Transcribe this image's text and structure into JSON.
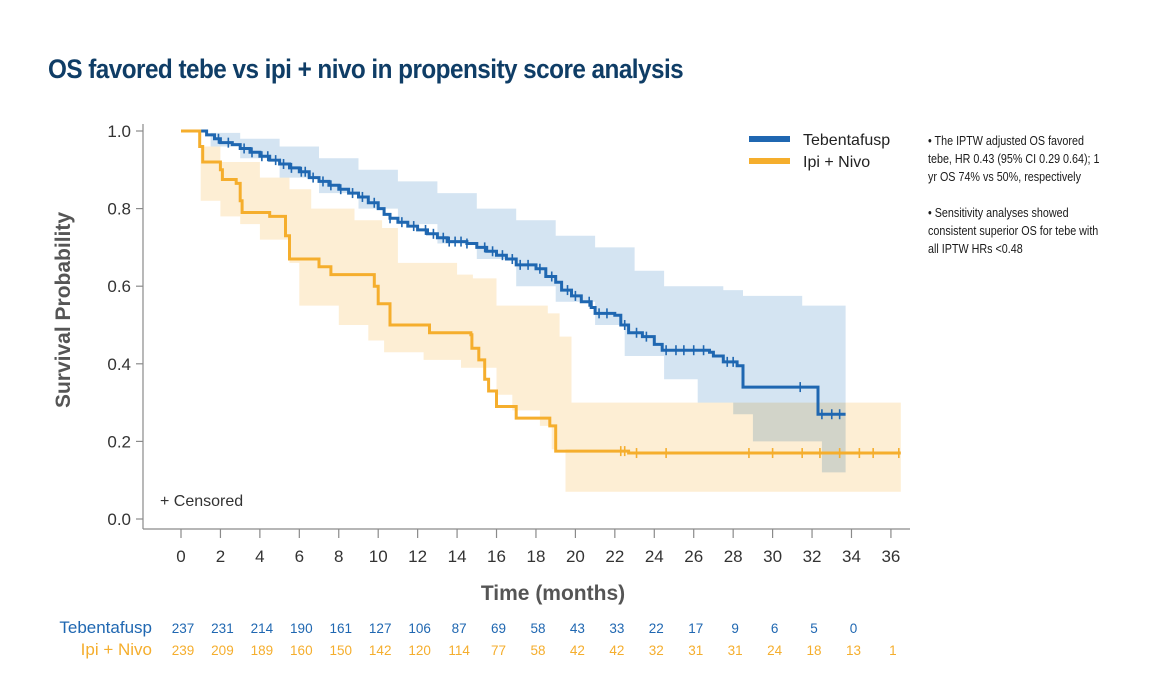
{
  "title": "OS favored tebe vs ipi + nivo in propensity score analysis",
  "notes": [
    "• The IPTW adjusted OS favored tebe, HR 0.43 (95% CI 0.29 0.64); 1 yr OS 74% vs 50%, respectively",
    "• Sensitivity analyses showed consistent superior OS for tebe with all IPTW HRs <0.48"
  ],
  "colors": {
    "tebe": "#1f67b1",
    "tebe_ci": "#cddff0",
    "ipi": "#f5ae2d",
    "ipi_ci": "#fdeed4",
    "overlap": "#d2d8d3",
    "title": "#0f3d66"
  },
  "chart_data": {
    "type": "line",
    "subtype": "kaplan-meier",
    "title": "OS favored tebe vs ipi + nivo in propensity score analysis",
    "xlabel": "Time (months)",
    "ylabel": "Survival Probability",
    "xlim": [
      -1.8,
      37
    ],
    "ylim": [
      0,
      1.0
    ],
    "x_ticks": [
      0,
      2,
      4,
      6,
      8,
      10,
      12,
      14,
      16,
      18,
      20,
      22,
      24,
      26,
      28,
      30,
      32,
      34,
      36
    ],
    "y_ticks": [
      0.0,
      0.2,
      0.4,
      0.6,
      0.8,
      1.0
    ],
    "y_tick_labels": [
      "0.0",
      "0.2",
      "0.4",
      "0.6",
      "0.8",
      "1.0"
    ],
    "grid": false,
    "legend_position": "top-right",
    "censored_note": "+ Censored",
    "series": [
      {
        "name": "Tebentafusp",
        "key": "tebe",
        "steps": [
          [
            0,
            1.0
          ],
          [
            1.0,
            1.0
          ],
          [
            1.3,
            0.99
          ],
          [
            1.7,
            0.98
          ],
          [
            2.0,
            0.97
          ],
          [
            2.6,
            0.965
          ],
          [
            3.0,
            0.955
          ],
          [
            3.5,
            0.945
          ],
          [
            4.0,
            0.935
          ],
          [
            4.5,
            0.925
          ],
          [
            5.0,
            0.915
          ],
          [
            5.5,
            0.905
          ],
          [
            6.0,
            0.895
          ],
          [
            6.5,
            0.88
          ],
          [
            7.0,
            0.87
          ],
          [
            7.5,
            0.86
          ],
          [
            8.0,
            0.85
          ],
          [
            8.5,
            0.84
          ],
          [
            9.0,
            0.83
          ],
          [
            9.5,
            0.815
          ],
          [
            10.0,
            0.8
          ],
          [
            10.3,
            0.785
          ],
          [
            10.6,
            0.775
          ],
          [
            11.0,
            0.765
          ],
          [
            11.5,
            0.755
          ],
          [
            12.0,
            0.745
          ],
          [
            12.5,
            0.735
          ],
          [
            13.0,
            0.725
          ],
          [
            13.5,
            0.715
          ],
          [
            14.5,
            0.71
          ],
          [
            15.0,
            0.7
          ],
          [
            15.5,
            0.69
          ],
          [
            16.0,
            0.68
          ],
          [
            16.5,
            0.67
          ],
          [
            17.0,
            0.655
          ],
          [
            18.0,
            0.645
          ],
          [
            18.5,
            0.625
          ],
          [
            19.0,
            0.61
          ],
          [
            19.3,
            0.59
          ],
          [
            19.8,
            0.575
          ],
          [
            20.3,
            0.56
          ],
          [
            20.8,
            0.545
          ],
          [
            21.0,
            0.53
          ],
          [
            22.0,
            0.525
          ],
          [
            22.3,
            0.5
          ],
          [
            22.7,
            0.48
          ],
          [
            23.4,
            0.47
          ],
          [
            24.0,
            0.45
          ],
          [
            24.4,
            0.435
          ],
          [
            26.8,
            0.43
          ],
          [
            27.0,
            0.42
          ],
          [
            27.5,
            0.405
          ],
          [
            28.2,
            0.395
          ],
          [
            28.5,
            0.34
          ],
          [
            32.2,
            0.34
          ],
          [
            32.3,
            0.27
          ],
          [
            33.7,
            0.27
          ]
        ],
        "ci_upper": [
          [
            0,
            1.0
          ],
          [
            1.5,
            0.995
          ],
          [
            3,
            0.98
          ],
          [
            5,
            0.96
          ],
          [
            7,
            0.93
          ],
          [
            9,
            0.9
          ],
          [
            11,
            0.87
          ],
          [
            13,
            0.84
          ],
          [
            15,
            0.8
          ],
          [
            17,
            0.77
          ],
          [
            19,
            0.73
          ],
          [
            21,
            0.7
          ],
          [
            23,
            0.64
          ],
          [
            24.5,
            0.6
          ],
          [
            27.5,
            0.59
          ],
          [
            28.5,
            0.575
          ],
          [
            31.5,
            0.55
          ],
          [
            33.7,
            0.44
          ]
        ],
        "ci_lower": [
          [
            0,
            1.0
          ],
          [
            1.5,
            0.96
          ],
          [
            3,
            0.93
          ],
          [
            5,
            0.88
          ],
          [
            7,
            0.84
          ],
          [
            9,
            0.8
          ],
          [
            11,
            0.76
          ],
          [
            13,
            0.71
          ],
          [
            15,
            0.67
          ],
          [
            17,
            0.6
          ],
          [
            19,
            0.56
          ],
          [
            21,
            0.5
          ],
          [
            22.5,
            0.42
          ],
          [
            24.5,
            0.36
          ],
          [
            26.2,
            0.3
          ],
          [
            28,
            0.27
          ],
          [
            29,
            0.2
          ],
          [
            32.5,
            0.12
          ],
          [
            33.7,
            0.12
          ]
        ],
        "censored_times": [
          1.9,
          2.4,
          3.2,
          3.6,
          4.1,
          4.4,
          4.8,
          5.2,
          5.6,
          6.1,
          6.3,
          6.7,
          7.2,
          7.6,
          8.1,
          8.7,
          9.2,
          9.8,
          10.6,
          11.2,
          11.8,
          12.4,
          12.8,
          13.3,
          13.6,
          13.9,
          14.2,
          14.5,
          15.4,
          15.8,
          16.3,
          16.8,
          17.2,
          17.6,
          18.2,
          18.8,
          19.6,
          20.0,
          20.7,
          21.2,
          21.6,
          22.5,
          23.1,
          23.6,
          24.6,
          25.1,
          25.5,
          26.0,
          26.5,
          27.7,
          28.0,
          31.4,
          32.5,
          33.0,
          33.4
        ]
      },
      {
        "name": "Ipi + Nivo",
        "key": "ipi",
        "steps": [
          [
            0,
            1.0
          ],
          [
            0.9,
            1.0
          ],
          [
            0.95,
            0.96
          ],
          [
            1.1,
            0.92
          ],
          [
            2.0,
            0.9
          ],
          [
            2.1,
            0.875
          ],
          [
            2.8,
            0.865
          ],
          [
            3.0,
            0.82
          ],
          [
            3.1,
            0.79
          ],
          [
            4.5,
            0.78
          ],
          [
            5.3,
            0.73
          ],
          [
            5.5,
            0.67
          ],
          [
            7.0,
            0.65
          ],
          [
            7.6,
            0.63
          ],
          [
            9.8,
            0.6
          ],
          [
            10.0,
            0.555
          ],
          [
            10.6,
            0.5
          ],
          [
            12.6,
            0.48
          ],
          [
            14.7,
            0.475
          ],
          [
            14.75,
            0.44
          ],
          [
            15.1,
            0.41
          ],
          [
            15.4,
            0.36
          ],
          [
            15.6,
            0.33
          ],
          [
            16.0,
            0.29
          ],
          [
            17.0,
            0.26
          ],
          [
            18.7,
            0.24
          ],
          [
            19.0,
            0.175
          ],
          [
            22.7,
            0.17
          ],
          [
            36.5,
            0.17
          ]
        ],
        "ci_upper": [
          [
            0,
            1.0
          ],
          [
            1,
            0.96
          ],
          [
            2,
            0.92
          ],
          [
            4,
            0.88
          ],
          [
            5.5,
            0.85
          ],
          [
            6.6,
            0.8
          ],
          [
            8.8,
            0.77
          ],
          [
            10.2,
            0.75
          ],
          [
            11,
            0.66
          ],
          [
            14,
            0.63
          ],
          [
            14.8,
            0.62
          ],
          [
            16,
            0.55
          ],
          [
            18.6,
            0.53
          ],
          [
            19.2,
            0.47
          ],
          [
            19.8,
            0.3
          ],
          [
            36.5,
            0.305
          ]
        ],
        "ci_lower": [
          [
            0,
            1.0
          ],
          [
            1,
            0.82
          ],
          [
            2,
            0.78
          ],
          [
            3,
            0.76
          ],
          [
            4,
            0.72
          ],
          [
            5.5,
            0.66
          ],
          [
            6,
            0.55
          ],
          [
            8,
            0.5
          ],
          [
            9.5,
            0.46
          ],
          [
            10.3,
            0.43
          ],
          [
            12.3,
            0.41
          ],
          [
            14.2,
            0.39
          ],
          [
            16,
            0.32
          ],
          [
            16.8,
            0.28
          ],
          [
            18.2,
            0.24
          ],
          [
            18.8,
            0.18
          ],
          [
            19.5,
            0.07
          ],
          [
            36.5,
            0.07
          ]
        ],
        "censored_times": [
          22.3,
          22.5,
          23.1,
          24.6,
          28.8,
          30.0,
          31.5,
          32.4,
          33.4,
          34.4,
          35.1,
          36.4
        ]
      }
    ],
    "risk_table": {
      "times": [
        0,
        2,
        4,
        6,
        8,
        10,
        12,
        14,
        16,
        18,
        20,
        22,
        24,
        26,
        28,
        30,
        32,
        34,
        36
      ],
      "rows": [
        {
          "label": "Tebentafusp",
          "key": "tebe",
          "values": [
            "237",
            "231",
            "214",
            "190",
            "161",
            "127",
            "106",
            "87",
            "69",
            "58",
            "43",
            "33",
            "22",
            "17",
            "9",
            "6",
            "5",
            "0",
            ""
          ]
        },
        {
          "label": "Ipi + Nivo",
          "key": "ipi",
          "values": [
            "239",
            "209",
            "189",
            "160",
            "150",
            "142",
            "120",
            "114",
            "77",
            "58",
            "42",
            "42",
            "32",
            "31",
            "31",
            "24",
            "18",
            "13",
            "1"
          ]
        }
      ]
    }
  }
}
